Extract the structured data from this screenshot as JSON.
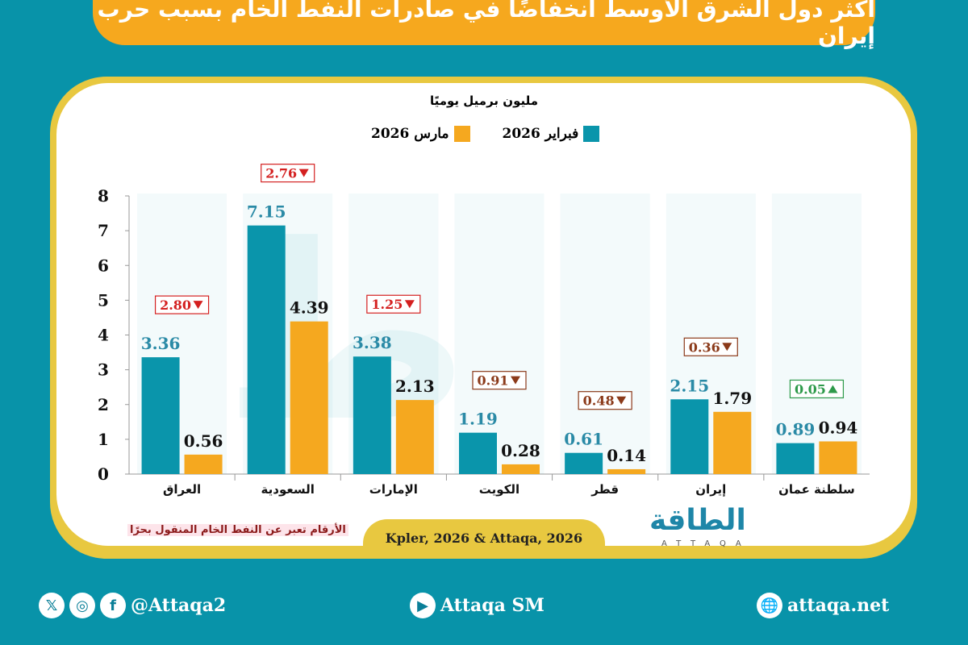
{
  "header": {
    "title": "أكثر دول الشرق الأوسط انخفاضًا في صادرات النفط الخام بسبب حرب إيران"
  },
  "colors": {
    "feb": "#0a95ab",
    "mar": "#f5a81f",
    "down_red": "#d42020",
    "down_brown": "#8b3a1a",
    "up_green": "#2e9a4a"
  },
  "chart_data": {
    "type": "bar",
    "title": "أكثر دول الشرق الأوسط انخفاضًا في صادرات النفط الخام بسبب حرب إيران",
    "ylabel": "مليون برميل يوميًا",
    "ylim": [
      0,
      8
    ],
    "yticks": [
      "0",
      "1",
      "2",
      "3",
      "4",
      "5",
      "6",
      "7",
      "8"
    ],
    "categories": [
      "العراق",
      "السعودية",
      "الإمارات",
      "الكويت",
      "قطر",
      "إيران",
      "سلطنة عمان"
    ],
    "series": [
      {
        "name": "فبراير 2026",
        "values": [
          3.36,
          7.15,
          3.38,
          1.19,
          0.61,
          2.15,
          0.89
        ],
        "labels": [
          "3.36",
          "7.15",
          "3.38",
          "1.19",
          "0.61",
          "2.15",
          "0.89"
        ]
      },
      {
        "name": "مارس 2026",
        "values": [
          0.56,
          4.39,
          2.13,
          0.28,
          0.14,
          1.79,
          0.94
        ],
        "labels": [
          "0.56",
          "4.39",
          "2.13",
          "0.28",
          "0.14",
          "1.79",
          "0.94"
        ]
      }
    ],
    "changes": [
      {
        "label": "2.80",
        "direction": "down",
        "tone": "red"
      },
      {
        "label": "2.76",
        "direction": "down",
        "tone": "red"
      },
      {
        "label": "1.25",
        "direction": "down",
        "tone": "red"
      },
      {
        "label": "0.91",
        "direction": "down",
        "tone": "brown"
      },
      {
        "label": "0.48",
        "direction": "down",
        "tone": "brown"
      },
      {
        "label": "0.36",
        "direction": "down",
        "tone": "brown"
      },
      {
        "label": "0.05",
        "direction": "up",
        "tone": "green"
      }
    ],
    "legend": "top-center"
  },
  "legend": {
    "feb": "فبراير 2026",
    "mar": "مارس 2026"
  },
  "note": "الأرقام تعبر عن النفط الخام المنقول بحرًا",
  "source": "Kpler, 2026 & Attaqa, 2026",
  "logo": {
    "ar": "الطاقة",
    "en": "ATTAQA"
  },
  "footer": {
    "social_handle": "@Attaqa2",
    "youtube": "Attaqa SM",
    "website": "attaqa.net"
  }
}
